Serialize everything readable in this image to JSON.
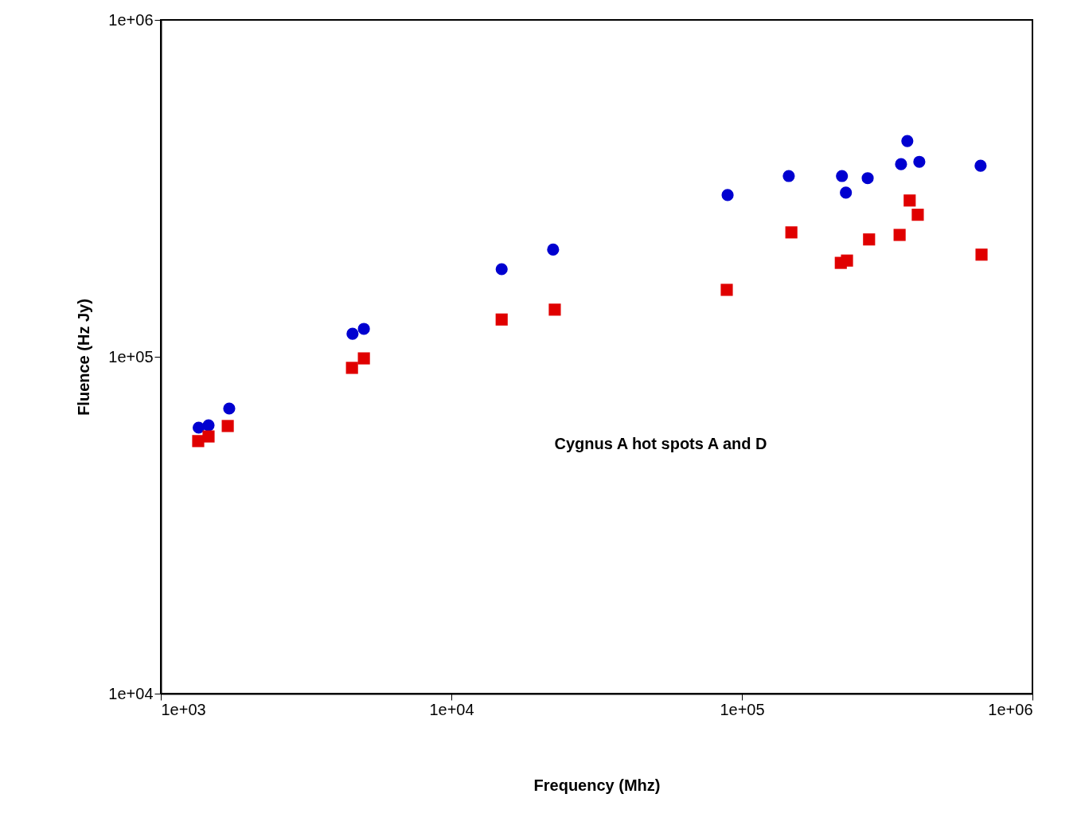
{
  "chart_data": {
    "type": "scatter",
    "xlabel": "Frequency (Mhz)",
    "ylabel": "Fluence (Hz Jy)",
    "annotations": [
      "Cygnus A hot spots A and D"
    ],
    "log": "xy",
    "grid": false,
    "xlim": [
      1000,
      1000000
    ],
    "ylim": [
      10000,
      1000000
    ],
    "xticks": [
      {
        "value": 1000,
        "label": "1e+03"
      },
      {
        "value": 10000,
        "label": "1e+04"
      },
      {
        "value": 100000,
        "label": "1e+05"
      },
      {
        "value": 1000000,
        "label": "1e+06"
      }
    ],
    "yticks": [
      {
        "value": 10000,
        "label": "1e+04"
      },
      {
        "value": 100000,
        "label": "1e+05"
      },
      {
        "value": 1000000,
        "label": "1e+06"
      }
    ],
    "series": [
      {
        "color": "#0000d0",
        "marker": "circle",
        "x": [
          1350,
          1460,
          1720,
          4570,
          5000,
          14900,
          22400,
          89300,
          145000,
          221000,
          228000,
          271000,
          353000,
          371000,
          408000,
          663000
        ],
        "values": [
          61600,
          62600,
          70200,
          117000,
          121000,
          182000,
          208000,
          302000,
          344000,
          344000,
          307000,
          339000,
          373000,
          437000,
          379000,
          369000
        ]
      },
      {
        "color": "#e00000",
        "marker": "square",
        "x": [
          1345,
          1460,
          1700,
          4550,
          5000,
          14900,
          22700,
          88700,
          148000,
          219000,
          230000,
          274000,
          349000,
          378000,
          403000,
          668000
        ],
        "values": [
          56200,
          58000,
          62300,
          92700,
          98900,
          129000,
          138000,
          158000,
          234000,
          190000,
          193000,
          223000,
          230000,
          291000,
          264000,
          201000
        ]
      }
    ]
  }
}
